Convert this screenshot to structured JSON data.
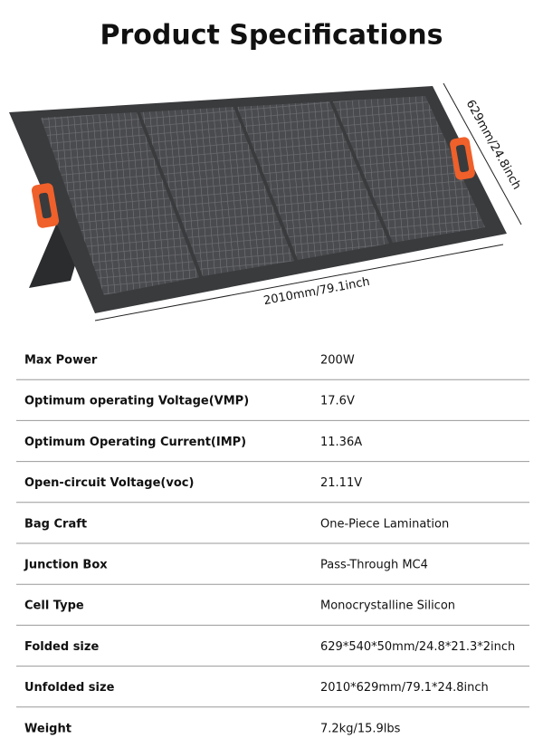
{
  "title": "Product Specifications",
  "dimensions": {
    "depth": "629mm/24.8inch",
    "width": "2010mm/79.1inch"
  },
  "table": {
    "rows": [
      [
        "Max Power",
        "200W"
      ],
      [
        "Optimum operating Voltage(VMP)",
        "17.6V"
      ],
      [
        "Optimum Operating Current(IMP)",
        "11.36A"
      ],
      [
        "Open-circuit Voltage(voc)",
        "21.11V"
      ],
      [
        "Bag Craft",
        "One-Piece Lamination"
      ],
      [
        "Junction Box",
        "Pass-Through MC4"
      ],
      [
        "Cell Type",
        "Monocrystalline Silicon"
      ],
      [
        "Folded size",
        "629*540*50mm/24.8*21.3*2inch"
      ],
      [
        "Unfolded size",
        "2010*629mm/79.1*24.8inch"
      ],
      [
        "Weight",
        "7.2kg/15.9lbs"
      ]
    ]
  }
}
